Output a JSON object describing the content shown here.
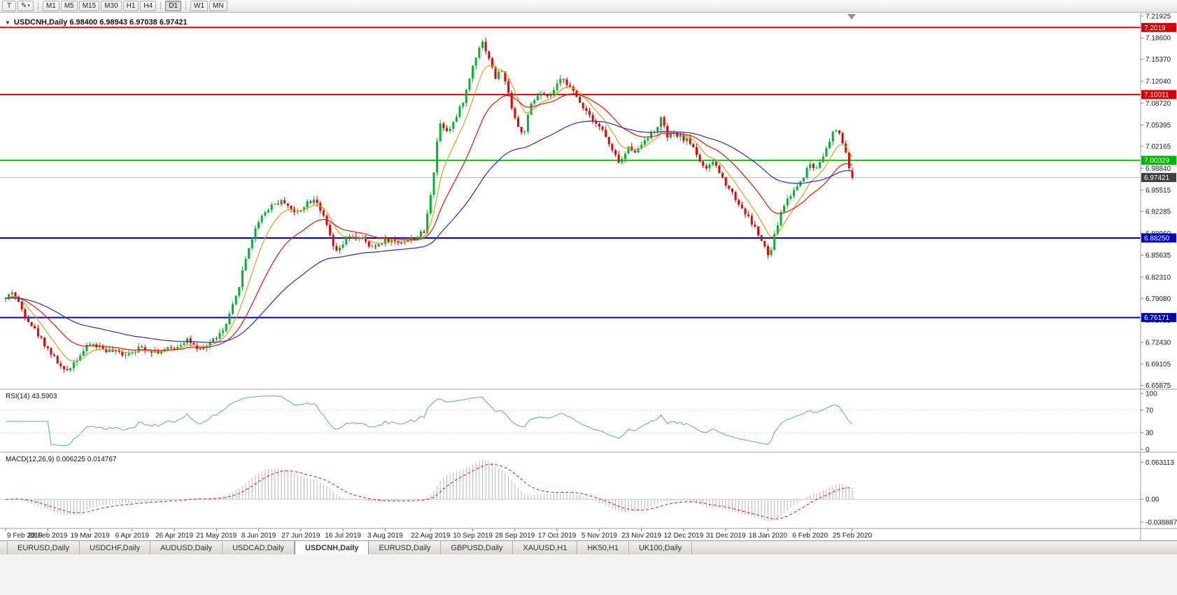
{
  "colors": {
    "up": "#00b32c",
    "down": "#e60000",
    "ma_fast": "#d8a01d",
    "ma_mid": "#e61400",
    "ma_slow": "#2929cc",
    "rsi": "#5f9fd6",
    "macd_hist": "#b6b6b6",
    "macd_signal": "#e61400",
    "current_badge": "#3f3f3f",
    "current_line": "#b8b8b8"
  },
  "toolbar": {
    "tools": [
      {
        "name": "pointer-tool",
        "glyph": "T"
      },
      {
        "name": "draw-tool",
        "glyph": "✎",
        "dropdown_glyph": "▾"
      }
    ],
    "timeframes": [
      "M1",
      "M5",
      "M15",
      "M30",
      "H1",
      "H4",
      "D1",
      "W1",
      "MN"
    ],
    "separators_after": [
      "H4",
      "D1"
    ],
    "active_timeframe": "D1"
  },
  "chart": {
    "collapse_icon": "▼",
    "symbol_header": "USDCNH,Daily 6.98400 6.98943 6.97038 6.97421",
    "price_ticks": [
      "7.21925",
      "7.18600",
      "7.15370",
      "7.12040",
      "7.08720",
      "7.05395",
      "7.02165",
      "6.98840",
      "6.95515",
      "6.92285",
      "6.88960",
      "6.85635",
      "6.82310",
      "6.79080",
      "6.75755",
      "6.72430",
      "6.69105",
      "6.65875"
    ],
    "hlines": [
      {
        "value": 7.2019,
        "label": "7.2019",
        "color": "#dd0000",
        "badge": "#d40000"
      },
      {
        "value": 7.10011,
        "label": "7.10011",
        "color": "#dd0000",
        "badge": "#d40000"
      },
      {
        "value": 7.00029,
        "label": "7.00029",
        "color": "#00cc00",
        "badge": "#00b400"
      },
      {
        "value": 6.8825,
        "label": "6.88250",
        "color": "#0000cc",
        "badge": "#0000c0"
      },
      {
        "value": 6.76171,
        "label": "6.76171",
        "color": "#0000cc",
        "badge": "#0000c0"
      }
    ],
    "current_price": {
      "value": 6.97421,
      "label": "6.97421"
    },
    "dates": [
      "9 Feb 2019",
      "28 Feb 2019",
      "19 Mar 2019",
      "6 Apr 2019",
      "26 Apr 2019",
      "21 May 2019",
      "8 Jun 2019",
      "27 Jun 2019",
      "16 Jul 2019",
      "3 Aug 2019",
      "22 Aug 2019",
      "10 Sep 2019",
      "28 Sep 2019",
      "17 Oct 2019",
      "5 Nov 2019",
      "23 Nov 2019",
      "12 Dec 2019",
      "31 Dec 2019",
      "18 Jan 2020",
      "6 Feb 2020",
      "25 Feb 2020"
    ]
  },
  "indicators": {
    "rsi": {
      "label": "RSI(14) 43.5903",
      "period": 14,
      "last": 43.5903,
      "scale": [
        "100",
        "70",
        "30",
        "0"
      ],
      "scale_values": [
        100,
        70,
        30,
        0
      ],
      "levels": [
        70,
        30
      ]
    },
    "macd": {
      "label": "MACD(12,26,9) 0.006225 0.014767",
      "fast": 12,
      "slow": 26,
      "signal": 9,
      "last_macd": 0.006225,
      "last_signal": 0.014767,
      "scale": [
        "0.063113",
        "0.00",
        "-0.038887"
      ],
      "scale_values": [
        0.063113,
        0,
        -0.038887
      ],
      "ylim": [
        -0.045,
        0.073
      ]
    }
  },
  "tabs": {
    "items": [
      "EURUSD,Daily",
      "USDCHF,Daily",
      "AUDUSD,Daily",
      "USDCAD,Daily",
      "USDCNH,Daily",
      "EURUSD,Daily",
      "GBPUSD,Daily",
      "XAUUSD,H1",
      "HK50,H1",
      "UK100,Daily"
    ],
    "active_index": 4
  },
  "chart_data": {
    "type": "candlestick",
    "symbol": "USDCNH",
    "timeframe": "Daily",
    "last_ohlc": {
      "open": 6.984,
      "high": 6.98943,
      "low": 6.97038,
      "close": 6.97421
    },
    "y_range": [
      6.653,
      7.2245
    ],
    "candle_count": 262,
    "seed": 42,
    "moving_averages": [
      {
        "period": 8,
        "color_key": "ma_fast"
      },
      {
        "period": 21,
        "color_key": "ma_mid"
      },
      {
        "period": 55,
        "color_key": "ma_slow"
      }
    ],
    "price_path": [
      [
        0.0,
        6.79
      ],
      [
        0.008,
        6.802
      ],
      [
        0.02,
        6.772
      ],
      [
        0.035,
        6.742
      ],
      [
        0.055,
        6.705
      ],
      [
        0.07,
        6.678
      ],
      [
        0.085,
        6.701
      ],
      [
        0.1,
        6.722
      ],
      [
        0.12,
        6.712
      ],
      [
        0.14,
        6.706
      ],
      [
        0.16,
        6.716
      ],
      [
        0.18,
        6.71
      ],
      [
        0.2,
        6.716
      ],
      [
        0.215,
        6.73
      ],
      [
        0.228,
        6.708
      ],
      [
        0.242,
        6.725
      ],
      [
        0.258,
        6.742
      ],
      [
        0.272,
        6.792
      ],
      [
        0.286,
        6.864
      ],
      [
        0.3,
        6.913
      ],
      [
        0.315,
        6.934
      ],
      [
        0.33,
        6.938
      ],
      [
        0.342,
        6.918
      ],
      [
        0.355,
        6.936
      ],
      [
        0.366,
        6.944
      ],
      [
        0.378,
        6.905
      ],
      [
        0.39,
        6.858
      ],
      [
        0.402,
        6.88
      ],
      [
        0.418,
        6.884
      ],
      [
        0.432,
        6.866
      ],
      [
        0.448,
        6.88
      ],
      [
        0.465,
        6.876
      ],
      [
        0.482,
        6.882
      ],
      [
        0.495,
        6.892
      ],
      [
        0.505,
        6.976
      ],
      [
        0.512,
        7.058
      ],
      [
        0.522,
        7.046
      ],
      [
        0.532,
        7.064
      ],
      [
        0.543,
        7.1
      ],
      [
        0.553,
        7.15
      ],
      [
        0.562,
        7.183
      ],
      [
        0.57,
        7.16
      ],
      [
        0.578,
        7.125
      ],
      [
        0.586,
        7.138
      ],
      [
        0.594,
        7.1
      ],
      [
        0.603,
        7.058
      ],
      [
        0.611,
        7.036
      ],
      [
        0.62,
        7.082
      ],
      [
        0.63,
        7.102
      ],
      [
        0.64,
        7.094
      ],
      [
        0.65,
        7.11
      ],
      [
        0.658,
        7.128
      ],
      [
        0.666,
        7.112
      ],
      [
        0.676,
        7.092
      ],
      [
        0.686,
        7.076
      ],
      [
        0.696,
        7.06
      ],
      [
        0.706,
        7.044
      ],
      [
        0.716,
        7.014
      ],
      [
        0.726,
        6.996
      ],
      [
        0.736,
        7.02
      ],
      [
        0.746,
        7.014
      ],
      [
        0.756,
        7.036
      ],
      [
        0.766,
        7.042
      ],
      [
        0.774,
        7.064
      ],
      [
        0.781,
        7.036
      ],
      [
        0.79,
        7.04
      ],
      [
        0.8,
        7.034
      ],
      [
        0.81,
        7.026
      ],
      [
        0.82,
        7.0
      ],
      [
        0.828,
        6.984
      ],
      [
        0.836,
        7.0
      ],
      [
        0.845,
        6.976
      ],
      [
        0.855,
        6.958
      ],
      [
        0.865,
        6.936
      ],
      [
        0.875,
        6.918
      ],
      [
        0.885,
        6.898
      ],
      [
        0.894,
        6.874
      ],
      [
        0.902,
        6.852
      ],
      [
        0.91,
        6.896
      ],
      [
        0.918,
        6.93
      ],
      [
        0.926,
        6.946
      ],
      [
        0.934,
        6.96
      ],
      [
        0.942,
        6.976
      ],
      [
        0.95,
        6.996
      ],
      [
        0.956,
        6.986
      ],
      [
        0.963,
        7.004
      ],
      [
        0.971,
        7.02
      ],
      [
        0.979,
        7.048
      ],
      [
        0.985,
        7.042
      ],
      [
        0.992,
        7.01
      ],
      [
        1.0,
        6.9742
      ]
    ]
  }
}
